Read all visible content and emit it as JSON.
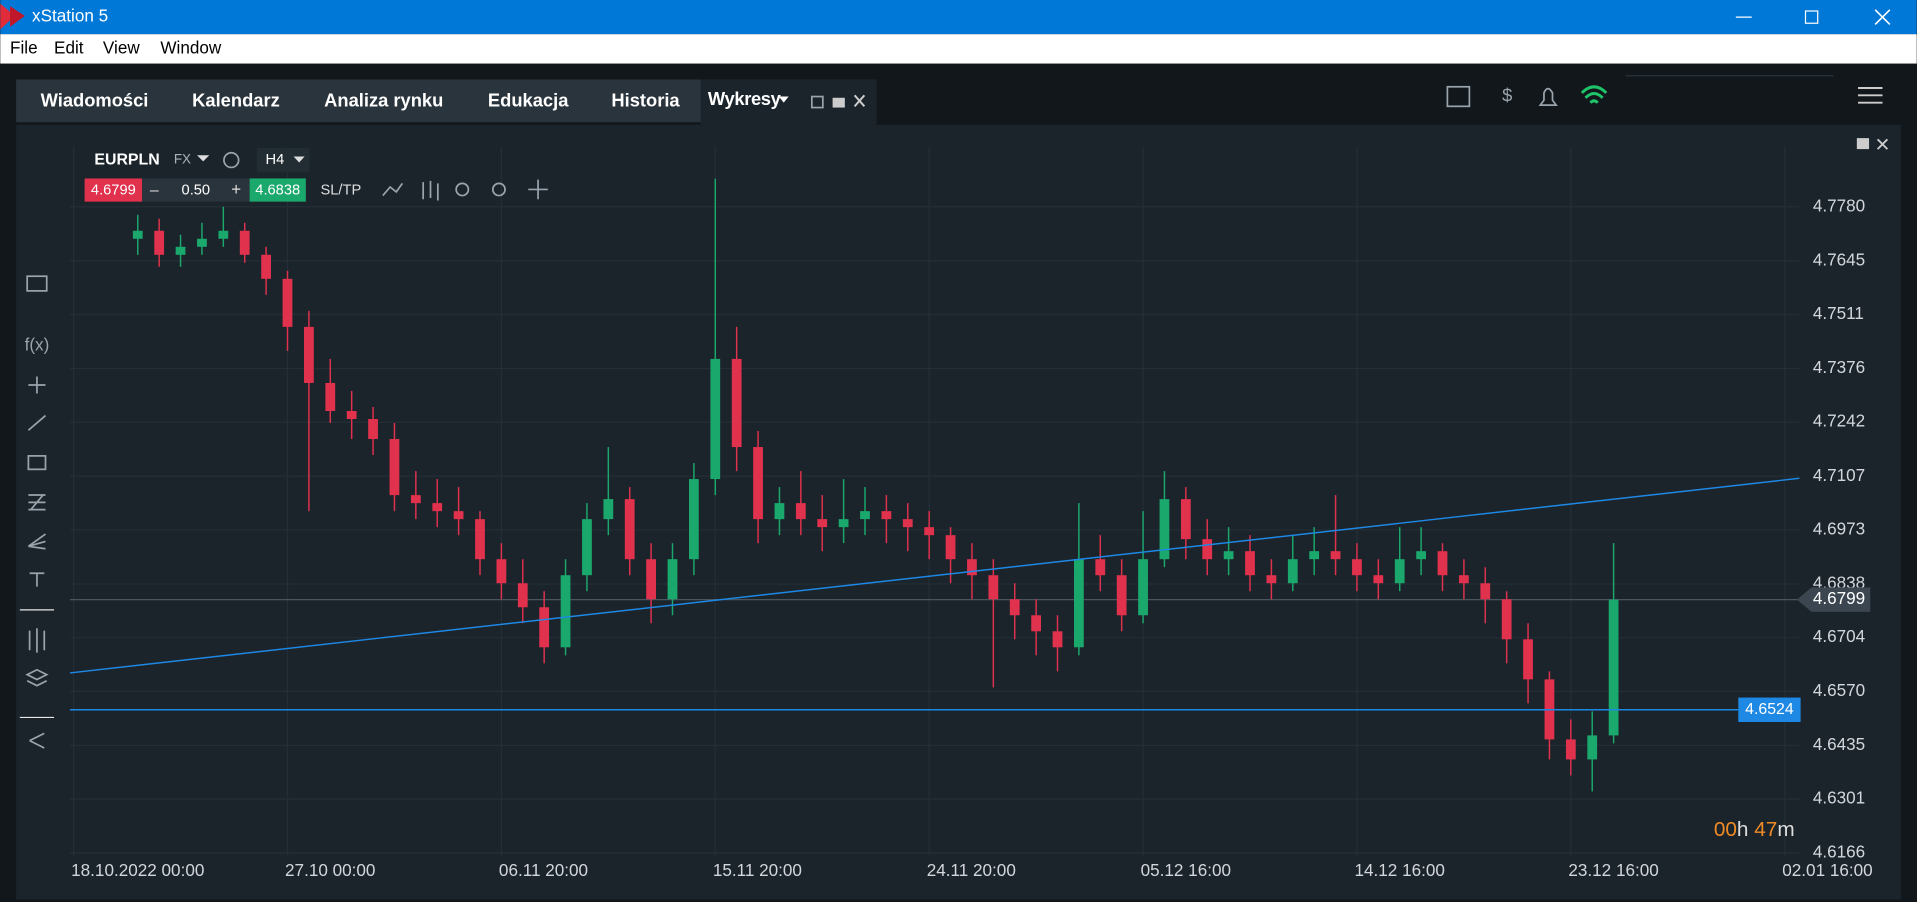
{
  "window": {
    "title": "xStation 5",
    "menu": [
      "File",
      "Edit",
      "View",
      "Window"
    ]
  },
  "tabs": [
    "Wiadomości",
    "Kalendarz",
    "Analiza rynku",
    "Edukacja",
    "Historia",
    "Wykresy"
  ],
  "toolbar": {
    "symbol": "EURPLN",
    "market": "FX",
    "timeframe": "H4",
    "bid": "4.6799",
    "volume": "0.50",
    "ask": "4.6838",
    "sltp": "SL/TP",
    "minus": "–",
    "plus": "+"
  },
  "countdown": {
    "hours": "00",
    "h": "h ",
    "minutes": "47",
    "m": "m"
  },
  "chart_data": {
    "type": "candlestick",
    "up_color": "#1aa86d",
    "down_color": "#e0314d",
    "ylim": [
      4.616,
      4.793
    ],
    "yticks": [
      {
        "value": 4.778,
        "label": "4.7780"
      },
      {
        "value": 4.7645,
        "label": "4.7645"
      },
      {
        "value": 4.7511,
        "label": "4.7511"
      },
      {
        "value": 4.7376,
        "label": "4.7376"
      },
      {
        "value": 4.7242,
        "label": "4.7242"
      },
      {
        "value": 4.7107,
        "label": "4.7107"
      },
      {
        "value": 4.6973,
        "label": "4.6973"
      },
      {
        "value": 4.6838,
        "label": "4.6838"
      },
      {
        "value": 4.6704,
        "label": "4.6704"
      },
      {
        "value": 4.657,
        "label": "4.6570"
      },
      {
        "value": 4.6435,
        "label": "4.6435"
      },
      {
        "value": 4.6301,
        "label": "4.6301"
      },
      {
        "value": 4.6166,
        "label": "4.6166"
      }
    ],
    "x_labels": [
      "18.10.2022 00:00",
      "27.10 00:00",
      "06.11 20:00",
      "15.11 20:00",
      "24.11 20:00",
      "05.12 16:00",
      "14.12 16:00",
      "23.12 16:00",
      "02.01 16:00"
    ],
    "grid": true,
    "current_price": 4.6799,
    "hline": 4.6524,
    "trendline": [
      4.6616,
      4.7102
    ],
    "candles": [
      [
        4.77,
        4.776,
        4.766,
        4.772
      ],
      [
        4.772,
        4.775,
        4.763,
        4.766
      ],
      [
        4.766,
        4.771,
        4.763,
        4.768
      ],
      [
        4.768,
        4.774,
        4.766,
        4.77
      ],
      [
        4.77,
        4.778,
        4.768,
        4.772
      ],
      [
        4.772,
        4.774,
        4.764,
        4.766
      ],
      [
        4.766,
        4.768,
        4.756,
        4.76
      ],
      [
        4.76,
        4.762,
        4.742,
        4.748
      ],
      [
        4.748,
        4.752,
        4.702,
        4.734
      ],
      [
        4.734,
        4.74,
        4.724,
        4.727
      ],
      [
        4.727,
        4.732,
        4.72,
        4.725
      ],
      [
        4.725,
        4.728,
        4.716,
        4.72
      ],
      [
        4.72,
        4.724,
        4.702,
        4.706
      ],
      [
        4.706,
        4.712,
        4.7,
        4.704
      ],
      [
        4.704,
        4.71,
        4.698,
        4.702
      ],
      [
        4.702,
        4.708,
        4.696,
        4.7
      ],
      [
        4.7,
        4.702,
        4.686,
        4.69
      ],
      [
        4.69,
        4.694,
        4.68,
        4.684
      ],
      [
        4.684,
        4.69,
        4.674,
        4.678
      ],
      [
        4.678,
        4.682,
        4.664,
        4.668
      ],
      [
        4.668,
        4.69,
        4.666,
        4.686
      ],
      [
        4.686,
        4.704,
        4.682,
        4.7
      ],
      [
        4.7,
        4.718,
        4.696,
        4.705
      ],
      [
        4.705,
        4.708,
        4.686,
        4.69
      ],
      [
        4.69,
        4.694,
        4.674,
        4.68
      ],
      [
        4.68,
        4.694,
        4.676,
        4.69
      ],
      [
        4.69,
        4.714,
        4.686,
        4.71
      ],
      [
        4.71,
        4.785,
        4.706,
        4.74
      ],
      [
        4.74,
        4.748,
        4.712,
        4.718
      ],
      [
        4.718,
        4.722,
        4.694,
        4.7
      ],
      [
        4.7,
        4.708,
        4.696,
        4.704
      ],
      [
        4.704,
        4.712,
        4.696,
        4.7
      ],
      [
        4.7,
        4.706,
        4.692,
        4.698
      ],
      [
        4.698,
        4.71,
        4.694,
        4.7
      ],
      [
        4.7,
        4.708,
        4.696,
        4.702
      ],
      [
        4.702,
        4.706,
        4.694,
        4.7
      ],
      [
        4.7,
        4.704,
        4.692,
        4.698
      ],
      [
        4.698,
        4.702,
        4.69,
        4.696
      ],
      [
        4.696,
        4.698,
        4.684,
        4.69
      ],
      [
        4.69,
        4.694,
        4.68,
        4.686
      ],
      [
        4.686,
        4.69,
        4.658,
        4.68
      ],
      [
        4.68,
        4.684,
        4.67,
        4.676
      ],
      [
        4.676,
        4.68,
        4.666,
        4.672
      ],
      [
        4.672,
        4.676,
        4.662,
        4.668
      ],
      [
        4.668,
        4.704,
        4.666,
        4.69
      ],
      [
        4.69,
        4.696,
        4.682,
        4.686
      ],
      [
        4.686,
        4.69,
        4.672,
        4.676
      ],
      [
        4.676,
        4.702,
        4.674,
        4.69
      ],
      [
        4.69,
        4.712,
        4.688,
        4.705
      ],
      [
        4.705,
        4.708,
        4.69,
        4.695
      ],
      [
        4.695,
        4.7,
        4.686,
        4.69
      ],
      [
        4.69,
        4.698,
        4.686,
        4.692
      ],
      [
        4.692,
        4.696,
        4.682,
        4.686
      ],
      [
        4.686,
        4.69,
        4.68,
        4.684
      ],
      [
        4.684,
        4.696,
        4.682,
        4.69
      ],
      [
        4.69,
        4.698,
        4.686,
        4.692
      ],
      [
        4.692,
        4.706,
        4.686,
        4.69
      ],
      [
        4.69,
        4.694,
        4.682,
        4.686
      ],
      [
        4.686,
        4.69,
        4.68,
        4.684
      ],
      [
        4.684,
        4.698,
        4.682,
        4.69
      ],
      [
        4.69,
        4.698,
        4.686,
        4.692
      ],
      [
        4.692,
        4.694,
        4.682,
        4.686
      ],
      [
        4.686,
        4.69,
        4.68,
        4.684
      ],
      [
        4.684,
        4.688,
        4.674,
        4.68
      ],
      [
        4.68,
        4.682,
        4.664,
        4.67
      ],
      [
        4.67,
        4.674,
        4.654,
        4.66
      ],
      [
        4.66,
        4.662,
        4.64,
        4.645
      ],
      [
        4.645,
        4.65,
        4.636,
        4.64
      ],
      [
        4.64,
        4.652,
        4.632,
        4.646
      ],
      [
        4.646,
        4.694,
        4.644,
        4.6799
      ]
    ]
  }
}
